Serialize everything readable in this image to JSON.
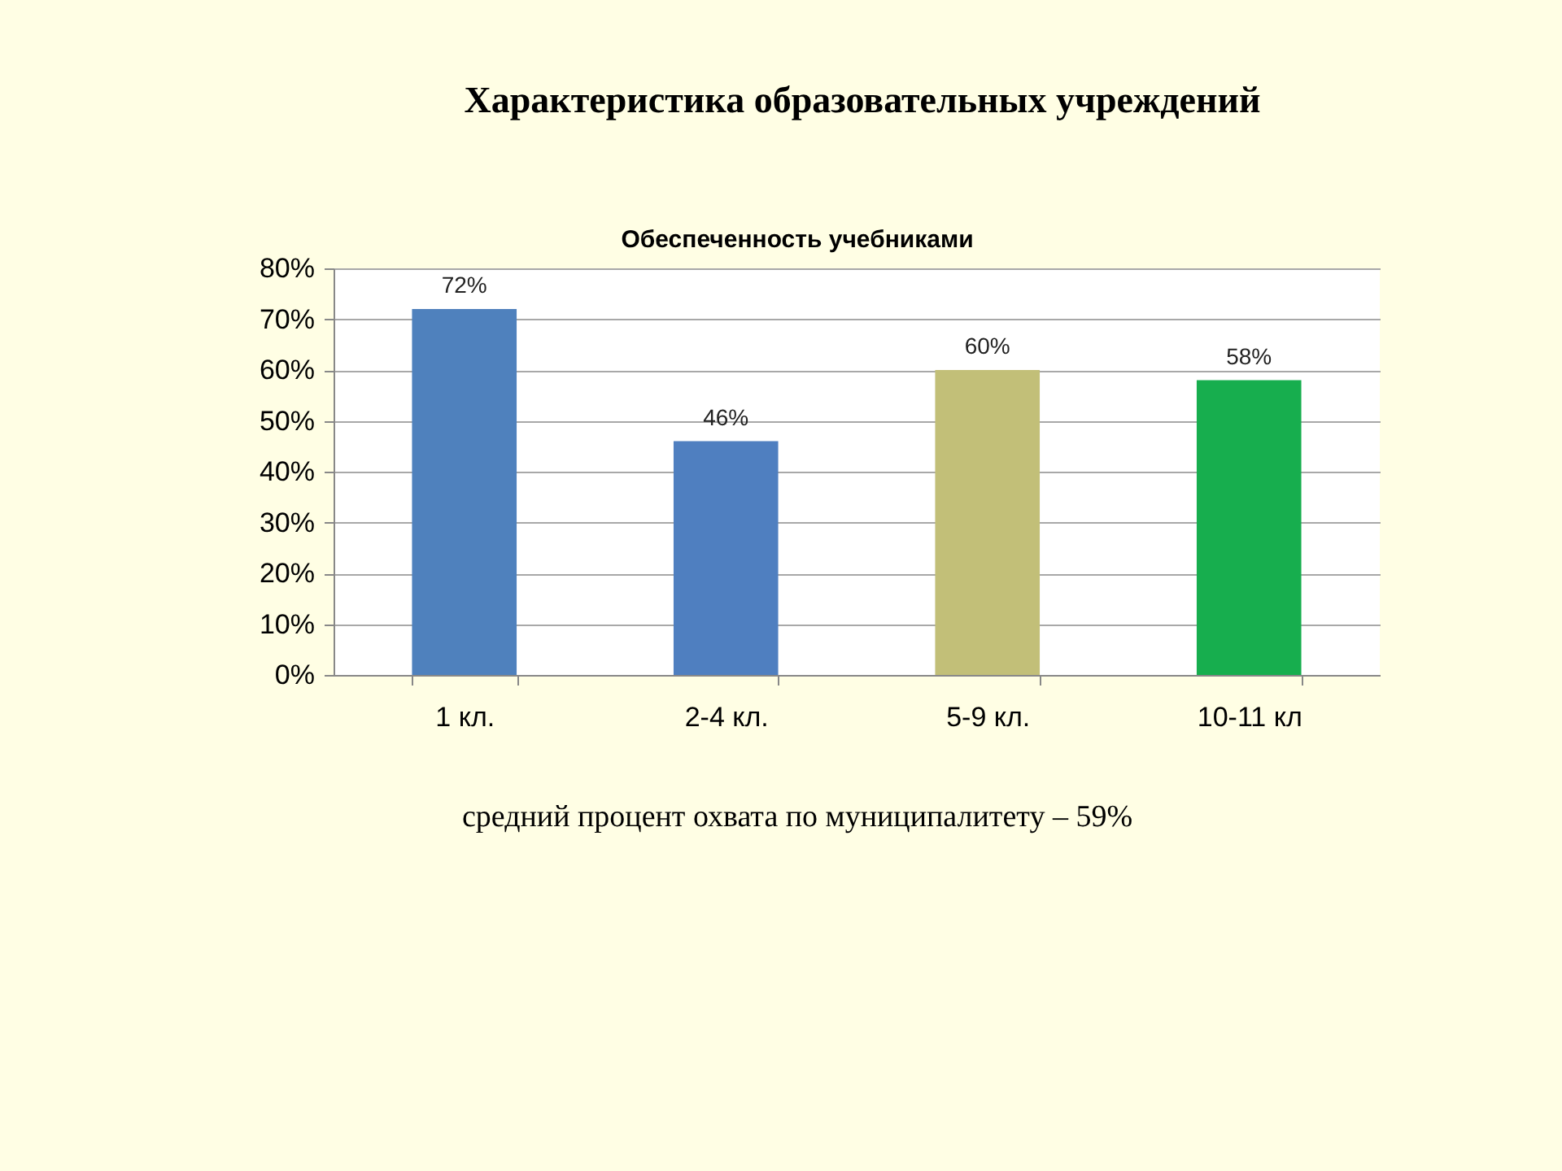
{
  "chart_data": {
    "type": "bar",
    "title": "Характеристика образовательных учреждений",
    "subtitle": "Обеспеченность учебниками",
    "categories": [
      "1 кл.",
      "2-4 кл.",
      "5-9 кл.",
      "10-11 кл"
    ],
    "values": [
      72,
      46,
      60,
      58
    ],
    "colors": [
      "#4f81bd",
      "#4f7fc0",
      "#c2bf78",
      "#17ae4e"
    ],
    "value_labels": [
      "72%",
      "46%",
      "60%",
      "58%"
    ],
    "ylim": [
      0,
      80
    ],
    "yticks": [
      {
        "value": 0,
        "label": "0%"
      },
      {
        "value": 10,
        "label": "10%"
      },
      {
        "value": 20,
        "label": "20%"
      },
      {
        "value": 30,
        "label": "30%"
      },
      {
        "value": 40,
        "label": "40%"
      },
      {
        "value": 50,
        "label": "50%"
      },
      {
        "value": 60,
        "label": "60%"
      },
      {
        "value": 70,
        "label": "70%"
      },
      {
        "value": 80,
        "label": "80%"
      }
    ],
    "grid": "y",
    "annotations": [
      "средний процент охвата по муниципалитету – 59%"
    ]
  }
}
